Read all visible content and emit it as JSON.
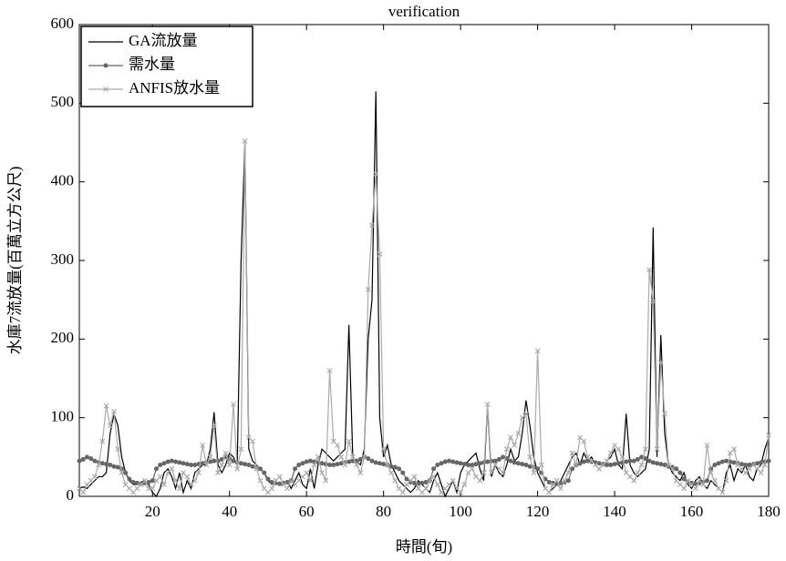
{
  "chart_data": {
    "type": "line",
    "title": "verification",
    "x_label": "時間(旬)",
    "y_label": "水庫7流放量(百萬立方公尺)",
    "x": [
      1,
      2,
      3,
      4,
      5,
      6,
      7,
      8,
      9,
      10,
      11,
      12,
      13,
      14,
      15,
      16,
      17,
      18,
      19,
      20,
      21,
      22,
      23,
      24,
      25,
      26,
      27,
      28,
      29,
      30,
      31,
      32,
      33,
      34,
      35,
      36,
      37,
      38,
      39,
      40,
      41,
      42,
      43,
      44,
      45,
      46,
      47,
      48,
      49,
      50,
      51,
      52,
      53,
      54,
      55,
      56,
      57,
      58,
      59,
      60,
      61,
      62,
      63,
      64,
      65,
      66,
      67,
      68,
      69,
      70,
      71,
      72,
      73,
      74,
      75,
      76,
      77,
      78,
      79,
      80,
      81,
      82,
      83,
      84,
      85,
      86,
      87,
      88,
      89,
      90,
      91,
      92,
      93,
      94,
      95,
      96,
      97,
      98,
      99,
      100,
      101,
      102,
      103,
      104,
      105,
      106,
      107,
      108,
      109,
      110,
      111,
      112,
      113,
      114,
      115,
      116,
      117,
      118,
      119,
      120,
      121,
      122,
      123,
      124,
      125,
      126,
      127,
      128,
      129,
      130,
      131,
      132,
      133,
      134,
      135,
      136,
      137,
      138,
      139,
      140,
      141,
      142,
      143,
      144,
      145,
      146,
      147,
      148,
      149,
      150,
      151,
      152,
      153,
      154,
      155,
      156,
      157,
      158,
      159,
      160,
      161,
      162,
      163,
      164,
      165,
      166,
      167,
      168,
      169,
      170,
      171,
      172,
      173,
      174,
      175,
      176,
      177,
      178,
      179,
      180
    ],
    "series": [
      {
        "name": "GA流放量",
        "color": "#000000",
        "marker": "none",
        "values": [
          10,
          12,
          10,
          15,
          20,
          25,
          25,
          30,
          80,
          105,
          90,
          50,
          30,
          20,
          15,
          15,
          18,
          20,
          15,
          5,
          0,
          10,
          30,
          35,
          25,
          10,
          30,
          5,
          20,
          10,
          30,
          35,
          40,
          40,
          60,
          107,
          40,
          30,
          40,
          55,
          50,
          40,
          300,
          450,
          60,
          45,
          40,
          35,
          30,
          20,
          15,
          20,
          15,
          15,
          20,
          10,
          20,
          30,
          15,
          10,
          35,
          10,
          40,
          60,
          55,
          50,
          45,
          50,
          55,
          60,
          218,
          50,
          45,
          40,
          60,
          200,
          250,
          515,
          100,
          50,
          65,
          40,
          30,
          20,
          15,
          10,
          5,
          10,
          20,
          15,
          10,
          5,
          20,
          30,
          15,
          0,
          10,
          20,
          5,
          30,
          40,
          45,
          50,
          55,
          35,
          20,
          115,
          25,
          40,
          30,
          25,
          40,
          60,
          45,
          50,
          80,
          122,
          90,
          50,
          30,
          20,
          10,
          5,
          10,
          15,
          20,
          30,
          40,
          50,
          55,
          40,
          55,
          45,
          50,
          40,
          35,
          40,
          45,
          50,
          60,
          40,
          35,
          105,
          40,
          30,
          25,
          30,
          35,
          60,
          342,
          50,
          205,
          80,
          40,
          30,
          25,
          20,
          30,
          15,
          10,
          20,
          25,
          15,
          10,
          20,
          15,
          10,
          5,
          30,
          40,
          20,
          35,
          30,
          40,
          25,
          20,
          35,
          40,
          60,
          75
        ]
      },
      {
        "name": "需水量",
        "color": "#666666",
        "marker": "circle",
        "values": [
          45,
          47,
          50,
          48,
          45,
          43,
          42,
          41,
          40,
          38,
          37,
          35,
          30,
          22,
          18,
          17,
          16,
          17,
          18,
          20,
          35,
          40,
          42,
          44,
          45,
          44,
          43,
          42,
          41,
          40,
          40,
          41,
          42,
          43,
          44,
          45,
          45,
          47,
          50,
          48,
          45,
          43,
          42,
          41,
          40,
          38,
          37,
          35,
          30,
          22,
          18,
          17,
          16,
          17,
          18,
          20,
          35,
          40,
          42,
          44,
          45,
          44,
          43,
          42,
          41,
          40,
          40,
          41,
          42,
          43,
          44,
          45,
          45,
          47,
          50,
          48,
          45,
          43,
          42,
          41,
          40,
          38,
          37,
          35,
          30,
          22,
          18,
          17,
          16,
          17,
          18,
          20,
          35,
          40,
          42,
          44,
          45,
          44,
          43,
          42,
          41,
          40,
          40,
          41,
          42,
          43,
          44,
          45,
          45,
          47,
          50,
          48,
          45,
          43,
          42,
          41,
          40,
          38,
          37,
          35,
          30,
          22,
          18,
          17,
          16,
          17,
          18,
          20,
          35,
          40,
          42,
          44,
          45,
          44,
          43,
          42,
          41,
          40,
          40,
          41,
          42,
          43,
          44,
          45,
          45,
          47,
          50,
          48,
          45,
          43,
          42,
          41,
          40,
          38,
          37,
          35,
          30,
          22,
          18,
          17,
          16,
          17,
          18,
          20,
          35,
          40,
          42,
          44,
          45,
          44,
          43,
          42,
          41,
          40,
          40,
          41,
          42,
          43,
          44,
          45
        ]
      },
      {
        "name": "ANFIS放水量",
        "color": "#aaaaaa",
        "marker": "x",
        "values": [
          10,
          5,
          15,
          20,
          25,
          40,
          70,
          115,
          90,
          108,
          60,
          30,
          15,
          10,
          5,
          10,
          15,
          20,
          10,
          10,
          20,
          25,
          15,
          30,
          35,
          20,
          10,
          30,
          25,
          15,
          20,
          30,
          65,
          40,
          50,
          90,
          30,
          40,
          55,
          40,
          117,
          35,
          60,
          452,
          75,
          70,
          35,
          20,
          10,
          5,
          10,
          20,
          25,
          15,
          10,
          20,
          15,
          20,
          25,
          30,
          20,
          40,
          50,
          30,
          20,
          160,
          70,
          65,
          50,
          40,
          70,
          50,
          40,
          30,
          50,
          263,
          345,
          410,
          308,
          60,
          40,
          30,
          20,
          10,
          5,
          15,
          20,
          25,
          10,
          5,
          10,
          20,
          25,
          15,
          5,
          10,
          15,
          20,
          10,
          5,
          15,
          30,
          35,
          25,
          20,
          30,
          117,
          30,
          40,
          35,
          30,
          60,
          75,
          65,
          80,
          100,
          105,
          50,
          30,
          185,
          40,
          10,
          5,
          15,
          20,
          10,
          20,
          30,
          55,
          40,
          75,
          70,
          50,
          45,
          40,
          35,
          40,
          45,
          55,
          65,
          60,
          50,
          30,
          25,
          20,
          30,
          40,
          60,
          288,
          248,
          60,
          170,
          105,
          40,
          35,
          20,
          15,
          10,
          20,
          15,
          10,
          20,
          15,
          65,
          30,
          20,
          10,
          5,
          20,
          55,
          60,
          40,
          35,
          30,
          35,
          40,
          35,
          30,
          40,
          78
        ]
      }
    ],
    "xlim": [
      1,
      180
    ],
    "ylim": [
      0,
      600
    ],
    "xticks": [
      20,
      40,
      60,
      80,
      100,
      120,
      140,
      160,
      180
    ],
    "yticks": [
      0,
      100,
      200,
      300,
      400,
      500,
      600
    ],
    "legend": "upper-left",
    "grid": false
  }
}
